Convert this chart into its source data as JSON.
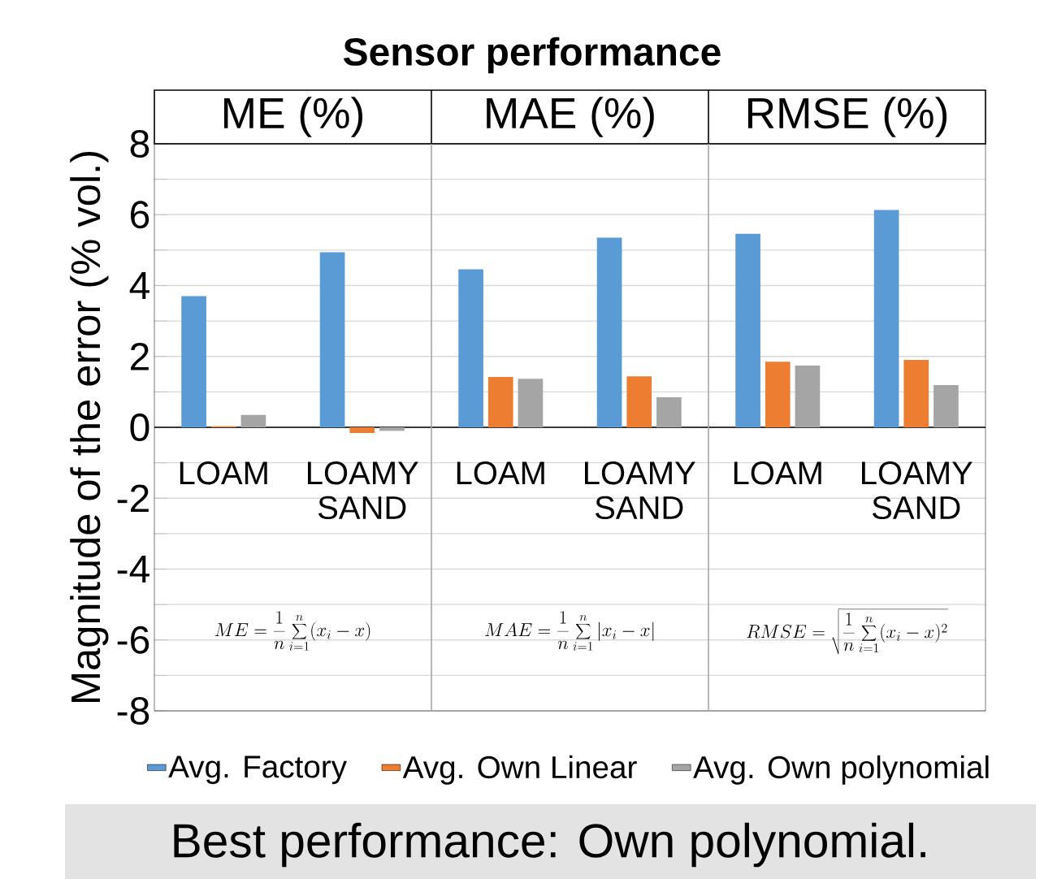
{
  "chart_data": {
    "type": "bar",
    "title": "Sensor performance",
    "ylabel": "Magnitude of the error (% vol.)",
    "categories": [
      "LOAM",
      "LOAMY SAND",
      "LOAM",
      "LOAMY SAND",
      "LOAM",
      "LOAMY SAND"
    ],
    "series": [
      {
        "name": "Avg. Factory",
        "color": "#5b9bd5",
        "values": [
          3.7,
          4.94,
          4.46,
          5.35,
          5.46,
          6.13
        ]
      },
      {
        "name": "Avg. Own Linear",
        "color": "#ed7d31",
        "values": [
          0.03,
          -0.16,
          1.42,
          1.44,
          1.85,
          1.9
        ]
      },
      {
        "name": "Avg. Own polynomial",
        "color": "#a5a5a5",
        "values": [
          0.35,
          -0.1,
          1.37,
          0.85,
          1.74,
          1.19
        ]
      }
    ],
    "ylim": [
      -8,
      8
    ],
    "yticks": [
      -8,
      {
        "value": -7,
        "label": null
      },
      -6,
      {
        "value": -5,
        "label": null
      },
      -4,
      {
        "value": -3,
        "label": null
      },
      -2,
      {
        "value": -1,
        "label": null
      },
      0,
      {
        "value": 1,
        "label": null
      },
      2,
      {
        "value": 3,
        "label": null
      },
      4,
      {
        "value": 5,
        "label": null
      },
      6,
      {
        "value": 7,
        "label": null
      },
      8
    ],
    "grid": "y",
    "legend": "bottom",
    "annotations": [
      "ME (%)",
      "MAE (%)",
      "RMSE (%)",
      "ME = \\frac{1}{n}\\sum_{i=1}^{n}(x_i - x)",
      "MAE = \\frac{1}{n}\\sum_{i=1}^{n}|x_i - x|",
      "RMSE = \\sqrt{\\frac{1}{n}\\sum_{i=1}^{n}(x_i - x)^2}",
      "Best performance: Own polynomial."
    ]
  }
}
